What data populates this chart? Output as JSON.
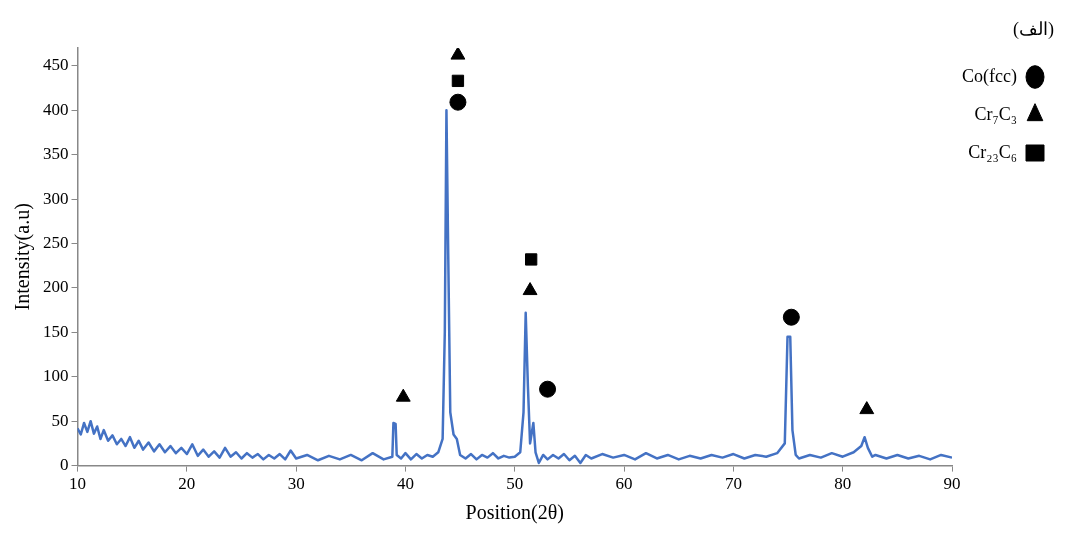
{
  "chart_data": {
    "type": "line",
    "xlabel": "Position(2θ)",
    "ylabel": "Intensity(a.u)",
    "annotations": [
      "(الف)"
    ],
    "x": [
      10,
      10.3,
      10.6,
      10.9,
      11.2,
      11.5,
      11.8,
      12.1,
      12.4,
      12.8,
      13.2,
      13.6,
      14,
      14.4,
      14.8,
      15.2,
      15.6,
      16,
      16.5,
      17,
      17.5,
      18,
      18.5,
      19,
      19.5,
      20,
      20.5,
      21,
      21.5,
      22,
      22.5,
      23,
      23.5,
      24,
      24.5,
      25,
      25.5,
      26,
      26.5,
      27,
      27.5,
      28,
      28.5,
      29,
      29.5,
      30,
      31,
      32,
      33,
      34,
      35,
      36,
      37,
      38,
      38.8,
      38.9,
      39.1,
      39.2,
      39.6,
      40,
      40.5,
      41,
      41.5,
      42,
      42.5,
      43,
      43.4,
      43.6,
      43.75,
      43.9,
      44.1,
      44.4,
      44.7,
      45,
      45.5,
      46,
      46.5,
      47,
      47.5,
      48,
      48.5,
      49,
      49.5,
      50,
      50.5,
      50.8,
      51,
      51.2,
      51.4,
      51.7,
      51.9,
      52.2,
      52.6,
      53,
      53.5,
      54,
      54.5,
      55,
      55.5,
      56,
      56.5,
      57,
      58,
      59,
      60,
      61,
      62,
      63,
      64,
      65,
      66,
      67,
      68,
      69,
      70,
      71,
      72,
      73,
      74,
      74.7,
      74.95,
      75.2,
      75.4,
      75.7,
      76,
      77,
      78,
      79,
      80,
      81,
      81.7,
      82,
      82.3,
      82.7,
      83,
      84,
      85,
      86,
      87,
      88,
      89,
      90
    ],
    "xlim": [
      10,
      90
    ],
    "xticks": [
      10,
      20,
      30,
      40,
      50,
      60,
      70,
      80,
      90
    ],
    "ylim": [
      0,
      470
    ],
    "yticks": [
      0,
      50,
      100,
      150,
      200,
      250,
      300,
      350,
      400,
      450
    ],
    "grid": false,
    "legend": "top right",
    "series": [
      {
        "type": "line",
        "color": "#4472c4",
        "values": [
          42,
          35,
          48,
          38,
          50,
          36,
          44,
          30,
          40,
          28,
          34,
          24,
          30,
          22,
          32,
          20,
          28,
          18,
          26,
          16,
          24,
          15,
          22,
          14,
          20,
          13,
          24,
          11,
          18,
          10,
          16,
          9,
          20,
          10,
          15,
          8,
          14,
          9,
          13,
          7,
          12,
          8,
          13,
          7,
          17,
          8,
          12,
          6,
          11,
          7,
          12,
          6,
          14,
          7,
          10,
          48,
          47,
          12,
          8,
          14,
          7,
          13,
          8,
          12,
          10,
          15,
          30,
          150,
          400,
          250,
          60,
          35,
          30,
          12,
          8,
          13,
          7,
          12,
          9,
          14,
          8,
          11,
          9,
          10,
          15,
          60,
          172,
          90,
          25,
          48,
          15,
          3,
          12,
          7,
          12,
          8,
          13,
          6,
          11,
          3,
          12,
          8,
          13,
          9,
          12,
          7,
          14,
          8,
          12,
          7,
          11,
          8,
          12,
          9,
          13,
          8,
          12,
          10,
          14,
          25,
          145,
          145,
          40,
          12,
          8,
          12,
          9,
          14,
          10,
          15,
          22,
          32,
          20,
          10,
          12,
          8,
          12,
          8,
          11,
          7,
          12,
          9
        ]
      },
      {
        "name": "Co(fcc)",
        "type": "scatter",
        "marker": "circle",
        "color": "#000000",
        "x": [
          44.8,
          53,
          75.3
        ],
        "values": [
          409,
          86,
          167
        ]
      },
      {
        "name": "Cr₇C₃",
        "type": "scatter",
        "marker": "triangle",
        "color": "#000000",
        "x": [
          39.8,
          44.8,
          51.4,
          82.2
        ],
        "values": [
          77,
          462,
          197,
          63
        ]
      },
      {
        "name": "Cr₂₃C₆",
        "type": "scatter",
        "marker": "square",
        "color": "#000000",
        "x": [
          44.8,
          51.5
        ],
        "values": [
          433,
          232
        ]
      }
    ]
  }
}
